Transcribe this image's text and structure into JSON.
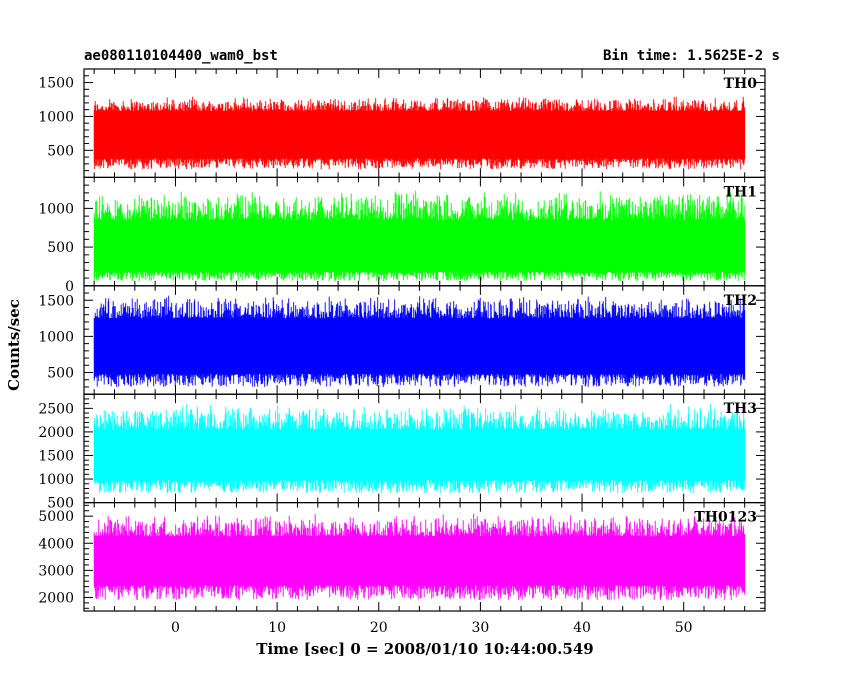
{
  "header": {
    "title": "ae080110104400_wam0_bst",
    "bin_time": "Bin time: 1.5625E-2 s"
  },
  "chart_data": {
    "type": "line",
    "xlabel": "Time [sec] 0 = 2008/01/10 10:44:00.549",
    "ylabel": "Counts/sec",
    "xlim": [
      -9,
      58
    ],
    "x_start": -8,
    "x_end": 56,
    "xticks": [
      0,
      10,
      20,
      30,
      40,
      50
    ],
    "grid": false,
    "panels": [
      {
        "label": "TH0",
        "color": "#ff0000",
        "ylim": [
          100,
          1700
        ],
        "yticks": [
          500,
          1000,
          1500
        ],
        "low": 220,
        "high": 1300,
        "band_low": 380,
        "band_high": 1080
      },
      {
        "label": "TH1",
        "color": "#00ff00",
        "ylim": [
          0,
          1400
        ],
        "yticks": [
          0,
          500,
          1000
        ],
        "low": 60,
        "high": 1250,
        "band_low": 180,
        "band_high": 850
      },
      {
        "label": "TH2",
        "color": "#0000ff",
        "ylim": [
          200,
          1700
        ],
        "yticks": [
          500,
          1000,
          1500
        ],
        "low": 300,
        "high": 1580,
        "band_low": 480,
        "band_high": 1250
      },
      {
        "label": "TH3",
        "color": "#00ffff",
        "ylim": [
          500,
          2800
        ],
        "yticks": [
          500,
          1000,
          1500,
          2000,
          2500
        ],
        "low": 700,
        "high": 2600,
        "band_low": 980,
        "band_high": 2050
      },
      {
        "label": "TH0123",
        "color": "#ff00ff",
        "ylim": [
          1500,
          5500
        ],
        "yticks": [
          2000,
          3000,
          4000,
          5000
        ],
        "low": 1900,
        "high": 5100,
        "band_low": 2450,
        "band_high": 4250
      }
    ]
  }
}
